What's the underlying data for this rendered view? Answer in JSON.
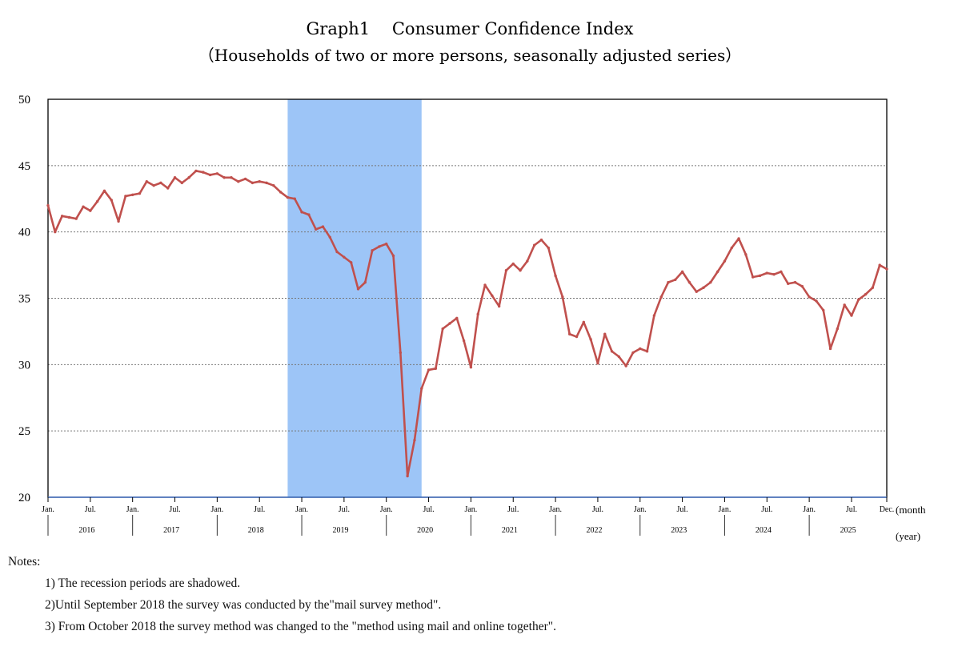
{
  "chart_data": {
    "type": "line",
    "title": "Graph1　 Consumer Confidence Index",
    "subtitle": "（Households of two or more persons, seasonally adjusted series）",
    "ylim": [
      20,
      50
    ],
    "yticks": [
      "20",
      "25",
      "30",
      "35",
      "40",
      "45",
      "50"
    ],
    "xlabel_month": "(month",
    "xlabel_year": "(year)",
    "start": "2016-01",
    "month_ticks": [
      "Jan.",
      "Jul.",
      "Jan.",
      "Jul.",
      "Jan.",
      "Jul.",
      "Jan.",
      "Jul.",
      "Jan.",
      "Jul.",
      "Jan.",
      "Jul.",
      "Jan.",
      "Jul.",
      "Jan.",
      "Jul.",
      "Jan.",
      "Jul.",
      "Jan.",
      "Jul.",
      "Dec."
    ],
    "years": [
      "2016",
      "2017",
      "2018",
      "2019",
      "2020",
      "2021",
      "2022",
      "2023",
      "2024",
      "2025"
    ],
    "recession": {
      "start_index": 34,
      "end_index": 53
    },
    "series": [
      {
        "name": "Consumer Confidence Index",
        "color": "#c0504d",
        "values": [
          42.0,
          40.0,
          41.2,
          41.1,
          41.0,
          41.9,
          41.6,
          42.3,
          43.1,
          42.4,
          40.8,
          42.7,
          42.8,
          42.9,
          43.8,
          43.5,
          43.7,
          43.3,
          44.1,
          43.7,
          44.1,
          44.6,
          44.5,
          44.3,
          44.4,
          44.1,
          44.1,
          43.8,
          44.0,
          43.7,
          43.8,
          43.7,
          43.5,
          43.0,
          42.6,
          42.5,
          41.5,
          41.3,
          40.2,
          40.4,
          39.6,
          38.5,
          38.1,
          37.7,
          35.7,
          36.2,
          38.6,
          38.9,
          39.1,
          38.2,
          30.9,
          21.6,
          24.3,
          28.2,
          29.6,
          29.7,
          32.7,
          33.1,
          33.5,
          31.8,
          29.8,
          33.8,
          36.0,
          35.2,
          34.4,
          37.1,
          37.6,
          37.1,
          37.8,
          39.0,
          39.4,
          38.8,
          36.7,
          35.1,
          32.3,
          32.1,
          33.2,
          31.9,
          30.1,
          32.3,
          31.0,
          30.6,
          29.9,
          30.9,
          31.2,
          31.0,
          33.7,
          35.1,
          36.2,
          36.4,
          37.0,
          36.2,
          35.5,
          35.8,
          36.2,
          37.0,
          37.8,
          38.8,
          39.5,
          38.3,
          36.6,
          36.7,
          36.9,
          36.8,
          37.0,
          36.1,
          36.2,
          35.9,
          35.1,
          34.8,
          34.1,
          31.2,
          32.7,
          34.5,
          33.7,
          34.9,
          35.3,
          35.8,
          37.5,
          37.2
        ]
      }
    ]
  },
  "notes": {
    "heading": "Notes:",
    "items": [
      "1) The recession periods are shadowed.",
      "2)Until September 2018 the survey was conducted by the\"mail survey method\".",
      "3) From October 2018 the survey method was changed to the \"method using mail and online together\"."
    ]
  }
}
